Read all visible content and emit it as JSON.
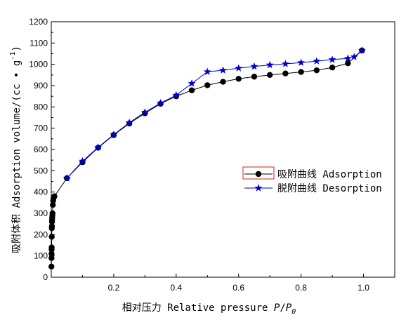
{
  "chart_data": {
    "type": "line",
    "xlabel": {
      "prefix": "相对压力 Relative pressure ",
      "var1": "P",
      "slash": "/",
      "var2": "P",
      "sub": "0"
    },
    "ylabel": {
      "main": "吸附体积 Adsorption volume/(cc • g",
      "sup": "-1",
      "close": ")"
    },
    "xlim": [
      0,
      1.1
    ],
    "ylim": [
      0,
      1200
    ],
    "xticks": [
      0.2,
      0.4,
      0.6,
      0.8,
      1.0
    ],
    "xtick_labels": [
      "0.2",
      "0.4",
      "0.6",
      "0.8",
      "1.0"
    ],
    "yticks": [
      0,
      100,
      200,
      300,
      400,
      500,
      600,
      700,
      800,
      900,
      1000,
      1100,
      1200
    ],
    "ytick_labels": [
      "0",
      "100",
      "200",
      "300",
      "400",
      "500",
      "600",
      "700",
      "800",
      "900",
      "1000",
      "1100",
      "1200"
    ],
    "legend_position": "right-middle",
    "series": [
      {
        "name": "吸附曲线 Adsorption",
        "marker": "circle",
        "color": "#000000",
        "x": [
          0.0005,
          0.0007,
          0.0009,
          0.0011,
          0.0013,
          0.0015,
          0.0017,
          0.002,
          0.0023,
          0.0026,
          0.003,
          0.0035,
          0.004,
          0.005,
          0.006,
          0.007,
          0.008,
          0.01,
          0.05,
          0.1,
          0.15,
          0.2,
          0.25,
          0.3,
          0.35,
          0.4,
          0.45,
          0.5,
          0.55,
          0.6,
          0.65,
          0.7,
          0.75,
          0.8,
          0.85,
          0.9,
          0.95,
          0.995
        ],
        "y": [
          50,
          90,
          110,
          130,
          140,
          190,
          230,
          240,
          260,
          270,
          280,
          290,
          300,
          340,
          360,
          370,
          375,
          380,
          465,
          540,
          608,
          668,
          722,
          770,
          815,
          850,
          878,
          902,
          918,
          932,
          942,
          950,
          957,
          964,
          972,
          985,
          1005,
          1065
        ]
      },
      {
        "name": "脱附曲线 Desorption",
        "marker": "star",
        "color": "#0000cc",
        "x": [
          0.995,
          0.97,
          0.95,
          0.9,
          0.85,
          0.8,
          0.75,
          0.7,
          0.65,
          0.6,
          0.55,
          0.5,
          0.45,
          0.4,
          0.35,
          0.3,
          0.25,
          0.2,
          0.15,
          0.1,
          0.05
        ],
        "y": [
          1065,
          1035,
          1028,
          1022,
          1015,
          1008,
          1002,
          997,
          990,
          982,
          972,
          965,
          910,
          855,
          818,
          775,
          726,
          670,
          610,
          545,
          465
        ]
      }
    ]
  }
}
